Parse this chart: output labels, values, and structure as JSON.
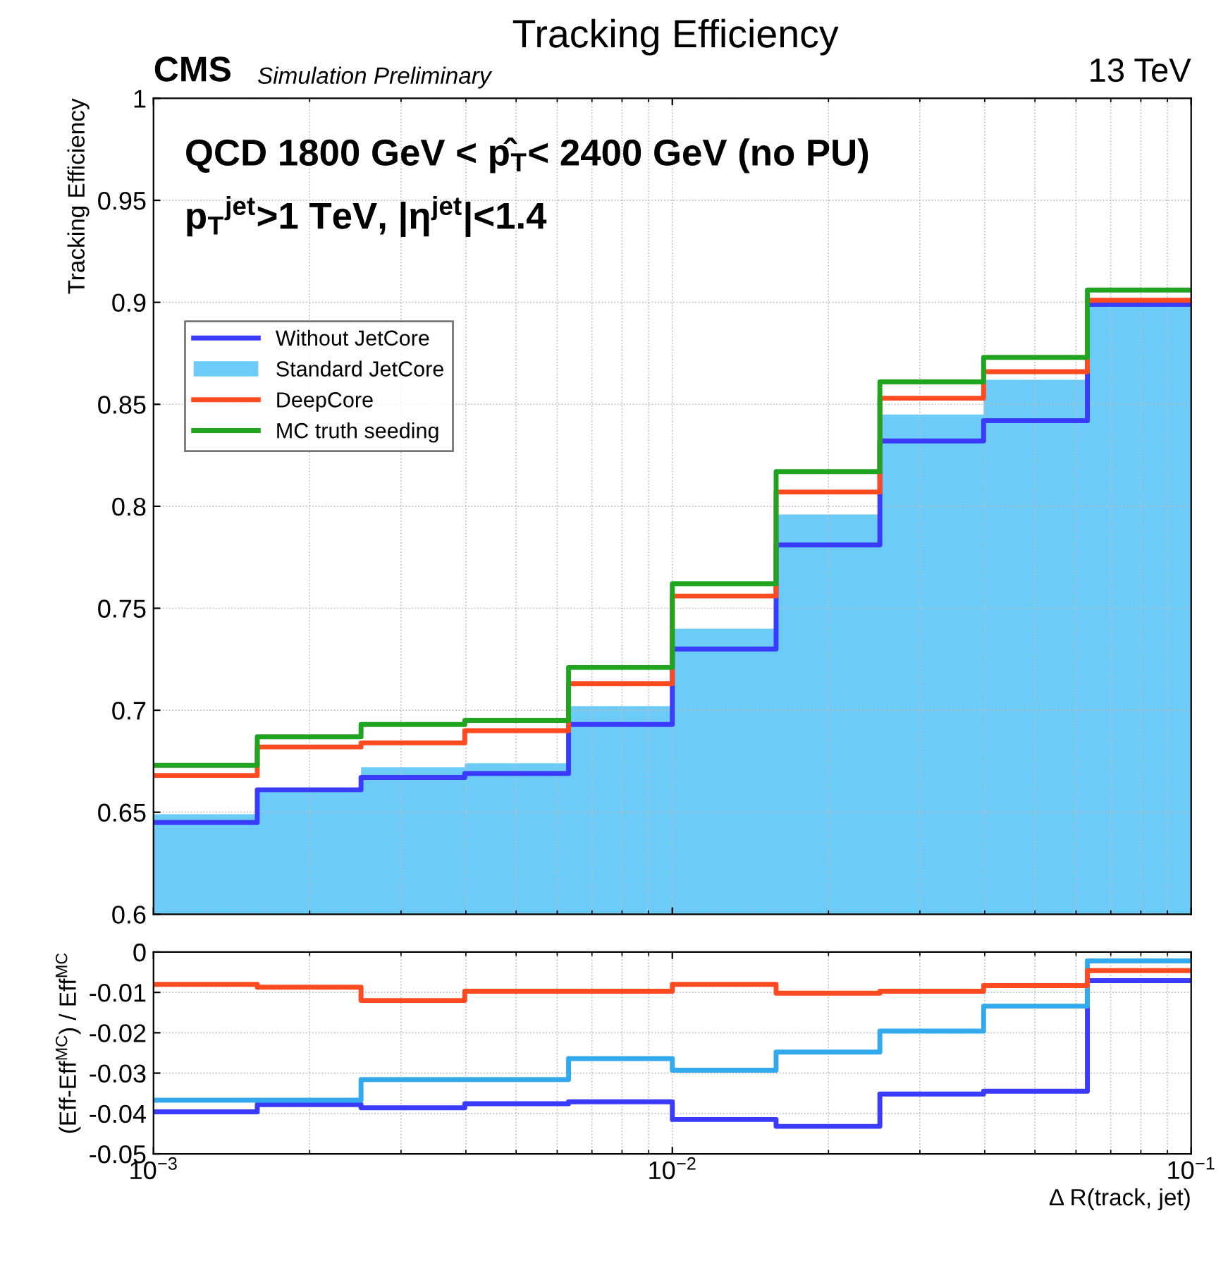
{
  "chart_data": [
    {
      "type": "step",
      "title": "Tracking Efficiency",
      "ylabel": "Tracking Efficiency",
      "annotations": [
        "CMS",
        "Simulation Preliminary",
        "13 TeV",
        "QCD 1800 GeV < p̂$_{T}$< 2400 GeV (no PU)",
        "p$_{T}$$^{jet}$>1 TeV, |η$^{jet}$|<1.4"
      ],
      "x": [
        0.001,
        0.001585,
        0.002512,
        0.003981,
        0.00631,
        0.01,
        0.01585,
        0.02512,
        0.03981,
        0.0631,
        0.1
      ],
      "series": [
        {
          "name": "Without JetCore",
          "color": "#3b3bff",
          "values": [
            0.645,
            0.661,
            0.667,
            0.669,
            0.693,
            0.73,
            0.781,
            0.832,
            0.842,
            0.899,
            0.899
          ]
        },
        {
          "name": "Standard JetCore",
          "type": "area",
          "color": "#6dccf7",
          "values": [
            0.649,
            0.662,
            0.672,
            0.674,
            0.702,
            0.74,
            0.796,
            0.845,
            0.862,
            0.9,
            0.9
          ]
        },
        {
          "name": "DeepCore",
          "color": "#ff4b1f",
          "values": [
            0.668,
            0.682,
            0.684,
            0.69,
            0.713,
            0.756,
            0.807,
            0.853,
            0.866,
            0.901,
            0.901
          ]
        },
        {
          "name": "MC truth seeding",
          "color": "#1fa51f",
          "values": [
            0.673,
            0.687,
            0.693,
            0.695,
            0.721,
            0.762,
            0.817,
            0.861,
            0.873,
            0.906,
            0.906
          ]
        }
      ],
      "log": "x",
      "xlim": [
        0.001,
        0.1
      ],
      "xticks": [
        {
          "value": 0.001,
          "label": null
        },
        {
          "value": 0.01,
          "label": null
        },
        {
          "value": 0.1,
          "label": null
        }
      ],
      "ylim": [
        0.6,
        1
      ],
      "yticks": [
        0.6,
        0.65,
        0.7,
        0.75,
        0.8,
        0.85,
        0.9,
        0.95,
        1
      ],
      "grid": true,
      "legend": "top left",
      "tick_labels": "y"
    },
    {
      "type": "step",
      "xlabel": "Δ R(track, jet)",
      "ylabel": "(Eff-Eff$^{MC}$) / Eff$^{MC}$",
      "x": [
        0.001,
        0.001585,
        0.002512,
        0.003981,
        0.00631,
        0.01,
        0.01585,
        0.02512,
        0.03981,
        0.0631,
        0.1
      ],
      "series": [
        {
          "color": "#3b3bff",
          "values": [
            -0.0396,
            -0.0378,
            -0.0386,
            -0.0376,
            -0.0371,
            -0.0415,
            -0.0432,
            -0.0352,
            -0.0345,
            -0.0071,
            -0.0071
          ]
        },
        {
          "color": "#33aaee",
          "values": [
            -0.0367,
            -0.0367,
            -0.0316,
            -0.0316,
            -0.0264,
            -0.0293,
            -0.0248,
            -0.0196,
            -0.0134,
            -0.0022,
            -0.0022
          ]
        },
        {
          "color": "#ff4b1f",
          "values": [
            -0.008,
            -0.0087,
            -0.012,
            -0.0097,
            -0.0097,
            -0.008,
            -0.0102,
            -0.0097,
            -0.0083,
            -0.0046,
            -0.0046
          ]
        }
      ],
      "log": "x",
      "xlim": [
        0.001,
        0.1
      ],
      "xticks": [
        {
          "value": 0.001,
          "label": "10$^{−3}$"
        },
        {
          "value": 0.01,
          "label": "10$^{−2}$"
        },
        {
          "value": 0.1,
          "label": "10$^{−1}$"
        }
      ],
      "ylim": [
        -0.05,
        0
      ],
      "yticks": [
        -0.05,
        -0.04,
        -0.03,
        -0.02,
        -0.01,
        0
      ],
      "grid": true
    }
  ]
}
